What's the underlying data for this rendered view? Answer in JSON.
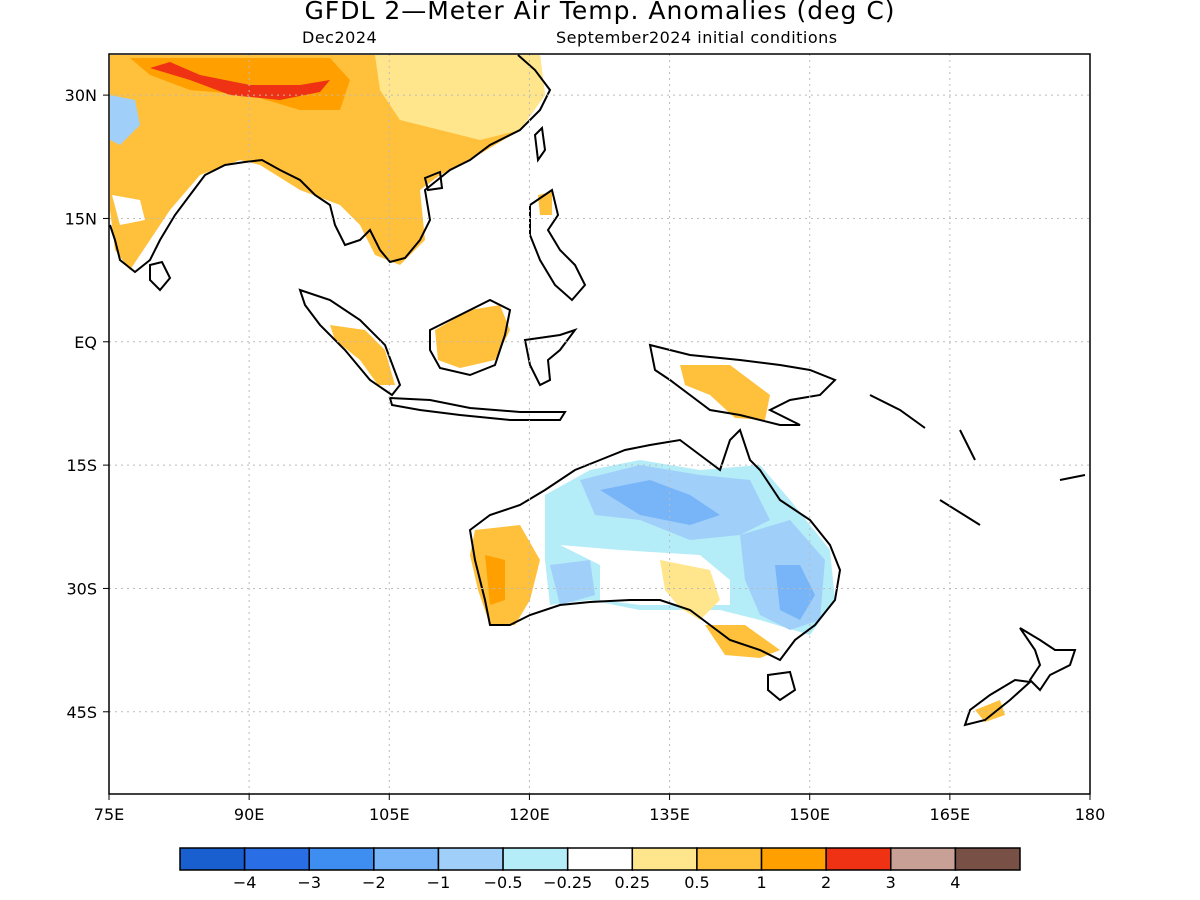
{
  "title": "GFDL 2—Meter Air Temp. Anomalies (deg C)",
  "valid_month": "Dec2024",
  "init_conditions": "September2024 initial conditions",
  "map": {
    "lat_labels": [
      "30N",
      "15N",
      "EQ",
      "15S",
      "30S",
      "45S"
    ],
    "lon_labels": [
      "75E",
      "90E",
      "105E",
      "120E",
      "135E",
      "150E",
      "165E",
      "180"
    ],
    "lat_values": [
      30,
      15,
      0,
      -15,
      -30,
      -45
    ],
    "lon_values": [
      75,
      90,
      105,
      120,
      135,
      150,
      165,
      180
    ],
    "extent": {
      "lon": [
        75,
        180
      ],
      "lat": [
        -55,
        35
      ]
    }
  },
  "legend": {
    "colors": [
      "#1a5fd0",
      "#2a6ee6",
      "#3d8ef0",
      "#78b4f8",
      "#a0d0fa",
      "#b4ecf8",
      "#ffffff",
      "#ffe68c",
      "#ffc03c",
      "#ffa000",
      "#f03214",
      "#c8a096",
      "#785046"
    ],
    "labels": [
      "−4",
      "−3",
      "−2",
      "−1",
      "−0.5",
      "−0.25",
      "0.25",
      "0.5",
      "1",
      "2",
      "3",
      "4"
    ]
  }
}
